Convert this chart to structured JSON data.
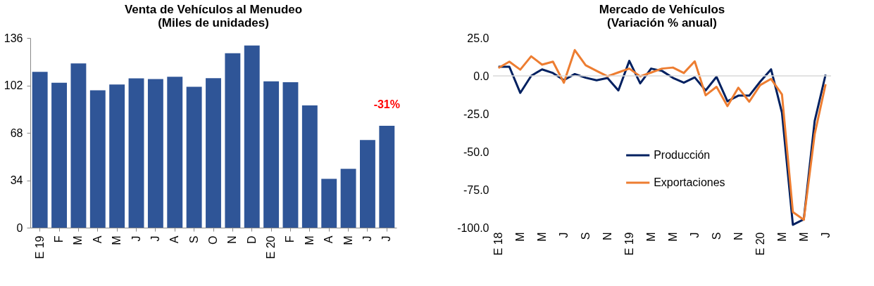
{
  "chart_data": [
    {
      "type": "bar",
      "title": "Venta de Vehículos al Menudeo",
      "subtitle": "(Miles de unidades)",
      "categories": [
        "E 19",
        "F",
        "M",
        "A",
        "M",
        "J",
        "J",
        "A",
        "S",
        "O",
        "N",
        "D",
        "E 20",
        "F",
        "M",
        "A",
        "M",
        "J",
        "J"
      ],
      "values": [
        111.7,
        103.9,
        117.7,
        98.5,
        102.6,
        107.1,
        106.5,
        108.2,
        101.0,
        107.2,
        125.1,
        130.6,
        104.9,
        104.3,
        87.6,
        35.0,
        42.2,
        62.9,
        73.1
      ],
      "color": "#2f5597",
      "ylim": [
        0,
        136
      ],
      "yticks": [
        0,
        34,
        68,
        102,
        136
      ],
      "grid": false,
      "annotations": [
        "-31%"
      ]
    },
    {
      "type": "line",
      "title": "Mercado de Vehículos",
      "subtitle": "(Variación % anual)",
      "categories": [
        "E 18",
        null,
        "M",
        null,
        "M",
        null,
        "J",
        null,
        "S",
        null,
        "N",
        null,
        "E 19",
        null,
        "M",
        null,
        "M",
        null,
        "J",
        null,
        "S",
        null,
        "N",
        null,
        "E 20",
        null,
        "M",
        null,
        "M",
        null,
        "J"
      ],
      "series": [
        {
          "name": "Producción",
          "color": "#002060",
          "values": [
            6.0,
            6.0,
            -11.2,
            0.0,
            4.3,
            1.9,
            -2.8,
            1.2,
            -1.2,
            -2.9,
            -1.4,
            -9.6,
            9.9,
            -4.9,
            4.8,
            3.3,
            -1.3,
            -4.5,
            -1.0,
            -9.6,
            -0.6,
            -16.7,
            -13.0,
            -13.0,
            -3.8,
            4.3,
            -24.2,
            -98.1,
            -94.5,
            -29.7,
            0.8
          ]
        },
        {
          "name": "Exportaciones",
          "color": "#ed7d31",
          "values": [
            5.2,
            9.4,
            4.1,
            12.9,
            7.4,
            9.4,
            -4.5,
            17.0,
            7.0,
            3.3,
            -0.3,
            2.3,
            4.8,
            -0.3,
            2.2,
            4.8,
            5.5,
            1.9,
            9.6,
            -12.8,
            -7.2,
            -19.9,
            -7.8,
            -17.0,
            -6.1,
            -2.0,
            -12.2,
            -89.7,
            -94.8,
            -38.4,
            -5.5
          ]
        }
      ],
      "ylim": [
        -100,
        25
      ],
      "yticks": [
        {
          "value": -100,
          "label": "-100.0"
        },
        {
          "value": -75,
          "label": "-75.0"
        },
        {
          "value": -50,
          "label": "-50.0"
        },
        {
          "value": -25,
          "label": "-25.0"
        },
        {
          "value": 0,
          "label": "0.0"
        },
        {
          "value": 25,
          "label": "25.0"
        }
      ],
      "grid": false,
      "legend": "center",
      "marker": "none",
      "line_style": "solid",
      "ref_lines": [
        {
          "axis": "y",
          "value": 0,
          "color": "#d9d9d9"
        }
      ]
    }
  ]
}
